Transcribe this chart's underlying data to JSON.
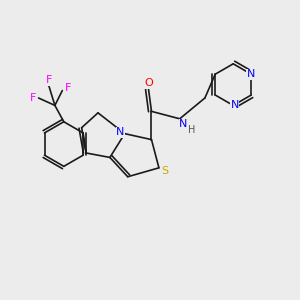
{
  "background_color": "#ececec",
  "bond_color": "#1a1a1a",
  "atom_colors": {
    "N": "#0000ff",
    "O": "#ff0000",
    "S": "#ccaa00",
    "F": "#ff00ff",
    "H": "#555555",
    "C": "#1a1a1a"
  },
  "font_size": 7,
  "fig_size": [
    3.0,
    3.0
  ],
  "dpi": 100
}
